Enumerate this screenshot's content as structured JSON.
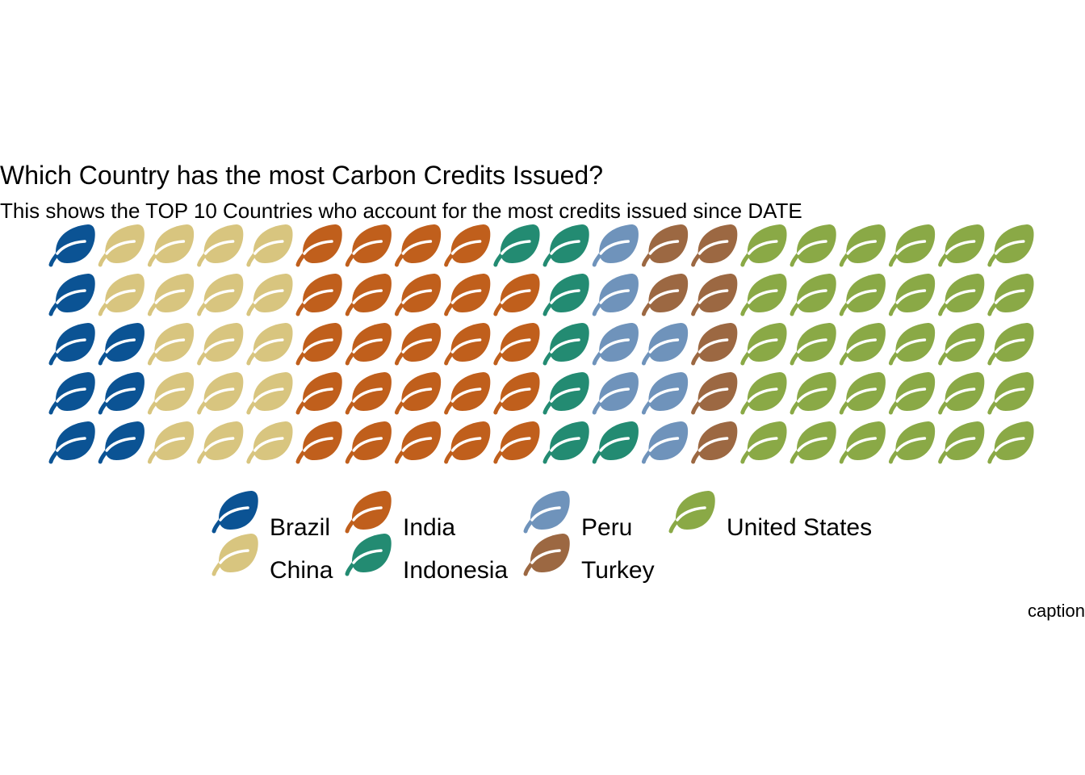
{
  "title": "Which Country has the most Carbon Credits Issued?",
  "subtitle": "This shows the TOP 10 Countries who account for the most credits issued since DATE",
  "caption": "caption",
  "icon": "leaf-icon",
  "colors": {
    "Brazil": "#0b5394",
    "China": "#d8c57f",
    "India": "#c05f1c",
    "Indonesia": "#238b72",
    "Peru": "#6f93bb",
    "Turkey": "#9c6842",
    "United States": "#8aa946"
  },
  "legend": {
    "items": [
      {
        "label": "Brazil",
        "color": "#0b5394"
      },
      {
        "label": "China",
        "color": "#d8c57f"
      },
      {
        "label": "India",
        "color": "#c05f1c"
      },
      {
        "label": "Indonesia",
        "color": "#238b72"
      },
      {
        "label": "Peru",
        "color": "#6f93bb"
      },
      {
        "label": "Turkey",
        "color": "#9c6842"
      },
      {
        "label": "United States",
        "color": "#8aa946"
      }
    ]
  },
  "chart_data": {
    "type": "waffle",
    "title": "Which Country has the most Carbon Credits Issued?",
    "subtitle": "This shows the TOP 10 Countries who account for the most credits issued since DATE",
    "caption": "caption",
    "rows": 5,
    "columns": 20,
    "series": [
      {
        "name": "Brazil",
        "value": 8
      },
      {
        "name": "China",
        "value": 17
      },
      {
        "name": "India",
        "value": 24
      },
      {
        "name": "Indonesia",
        "value": 7
      },
      {
        "name": "Peru",
        "value": 7
      },
      {
        "name": "Turkey",
        "value": 7
      },
      {
        "name": "United States",
        "value": 30
      }
    ],
    "legend_position": "bottom"
  }
}
